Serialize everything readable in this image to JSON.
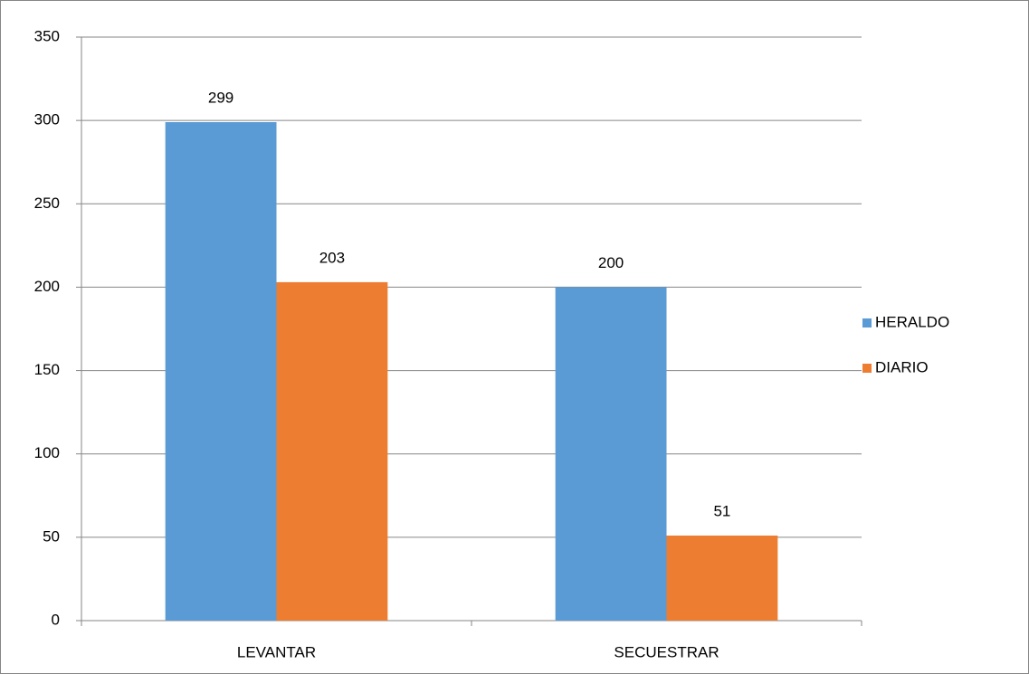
{
  "chart_data": {
    "type": "bar",
    "categories": [
      "LEVANTAR",
      "SECUESTRAR"
    ],
    "series": [
      {
        "name": "HERALDO",
        "color": "#5b9bd5",
        "values": [
          299,
          200
        ]
      },
      {
        "name": "DIARIO",
        "color": "#ed7d31",
        "values": [
          203,
          51
        ]
      }
    ],
    "ylim": [
      0,
      350
    ],
    "yticks": [
      0,
      50,
      100,
      150,
      200,
      250,
      300,
      350
    ],
    "grid": true,
    "legend": "right"
  }
}
